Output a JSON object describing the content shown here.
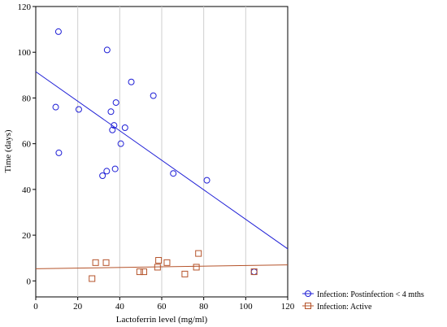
{
  "chart_data": {
    "type": "scatter",
    "xlabel": "Lactoferrin level (mg/ml)",
    "ylabel": "Time (days)",
    "xlim": [
      0,
      120
    ],
    "ylim": [
      -7,
      120
    ],
    "xticks": [
      "0",
      "20",
      "40",
      "60",
      "80",
      "100",
      "120"
    ],
    "yticks": [
      "0",
      "20",
      "40",
      "60",
      "80",
      "100",
      "120"
    ],
    "grid": "vertical",
    "legend_position": "bottom-right",
    "series": [
      {
        "name": "Infection: Postinfection < 4 mths",
        "marker": "circle",
        "color": "#1f1fd6",
        "points": [
          [
            9.5,
            76
          ],
          [
            10.8,
            109
          ],
          [
            11,
            56
          ],
          [
            20.5,
            75
          ],
          [
            31.8,
            46
          ],
          [
            33.8,
            48
          ],
          [
            34,
            101
          ],
          [
            35.8,
            74
          ],
          [
            36.5,
            66
          ],
          [
            37.3,
            68
          ],
          [
            37.8,
            49
          ],
          [
            38.2,
            78
          ],
          [
            40.5,
            60
          ],
          [
            42.5,
            67
          ],
          [
            45.5,
            87
          ],
          [
            56,
            81
          ],
          [
            65.5,
            47
          ],
          [
            81.5,
            44
          ],
          [
            104,
            4
          ]
        ],
        "fit": {
          "x": [
            0,
            120
          ],
          "y": [
            91.5,
            14
          ]
        }
      },
      {
        "name": "Infection: Active",
        "marker": "square",
        "color": "#b5532a",
        "points": [
          [
            26.8,
            1
          ],
          [
            28.5,
            8
          ],
          [
            33.5,
            8
          ],
          [
            49.5,
            4
          ],
          [
            51.5,
            4
          ],
          [
            58,
            6
          ],
          [
            58.5,
            9
          ],
          [
            62.5,
            8
          ],
          [
            71,
            3
          ],
          [
            76.5,
            6
          ],
          [
            77.5,
            12
          ],
          [
            104,
            4
          ]
        ],
        "fit": {
          "x": [
            0,
            120
          ],
          "y": [
            5.3,
            7
          ]
        }
      }
    ]
  }
}
